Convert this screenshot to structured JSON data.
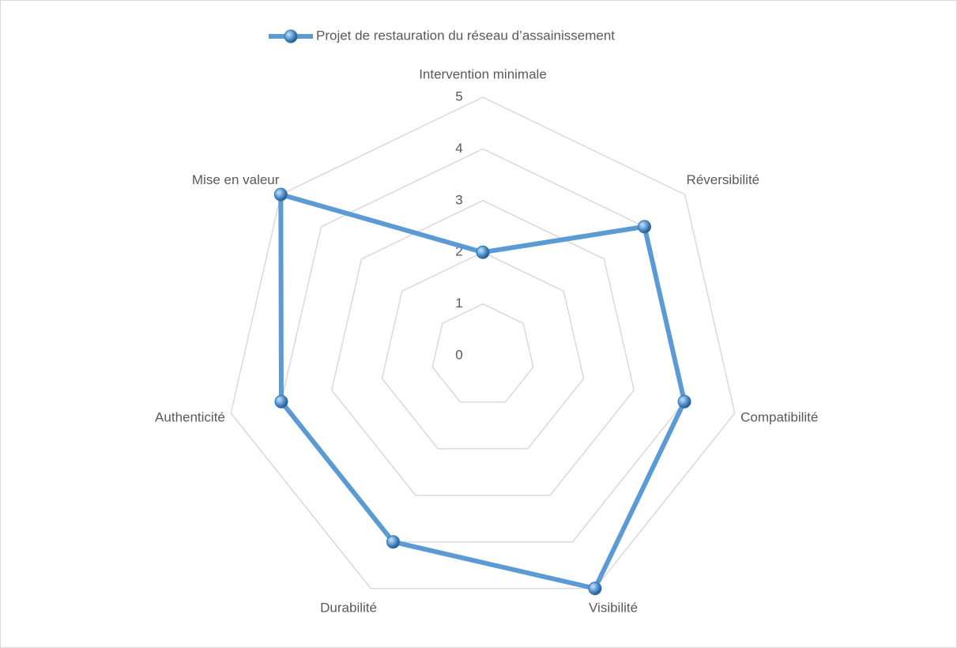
{
  "chart_data": {
    "type": "radar",
    "categories": [
      "Intervention minimale",
      "Réversibilité",
      "Compatibilité",
      "Visibilité",
      "Durabilité",
      "Authenticité",
      "Mise en valeur"
    ],
    "series": [
      {
        "name": "Projet de restauration du réseau d’assainissement",
        "color": "#5b9bd5",
        "values": [
          2,
          4,
          4,
          5,
          4,
          4,
          5
        ]
      }
    ],
    "rlim": [
      0,
      5
    ],
    "rticks": [
      0,
      1,
      2,
      3,
      4,
      5
    ],
    "grid": true,
    "legend": "top"
  }
}
